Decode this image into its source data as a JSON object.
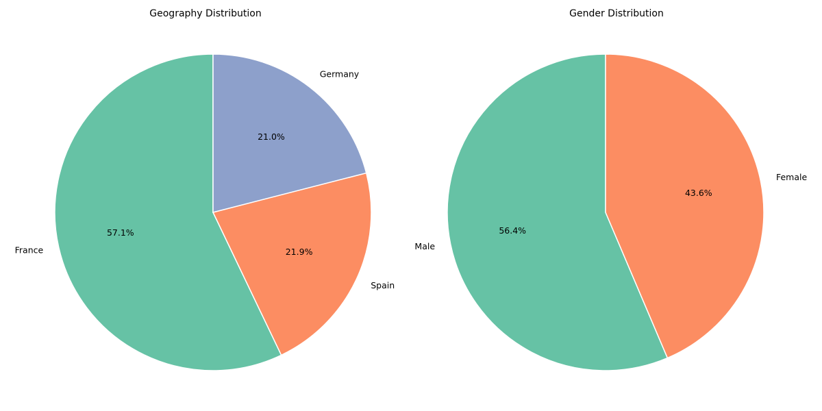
{
  "chart_data": [
    {
      "type": "pie",
      "title": "Geography Distribution",
      "categories": [
        "France",
        "Spain",
        "Germany"
      ],
      "values": [
        57.1,
        21.9,
        21.0
      ],
      "value_labels": [
        "57.1%",
        "21.9%",
        "21.0%"
      ],
      "colors": [
        "#66c2a5",
        "#fc8d62",
        "#8da0cb"
      ],
      "start_angle_deg": 90,
      "direction": "counterclockwise"
    },
    {
      "type": "pie",
      "title": "Gender Distribution",
      "categories": [
        "Male",
        "Female"
      ],
      "values": [
        56.4,
        43.6
      ],
      "value_labels": [
        "56.4%",
        "43.6%"
      ],
      "colors": [
        "#66c2a5",
        "#fc8d62"
      ],
      "start_angle_deg": 90,
      "direction": "counterclockwise"
    }
  ]
}
